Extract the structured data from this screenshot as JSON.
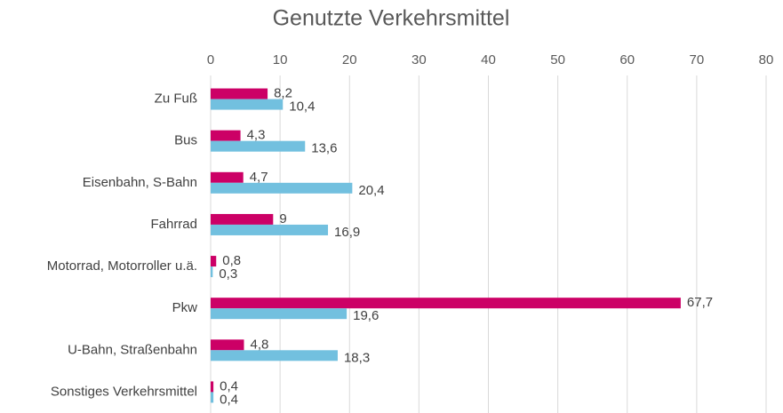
{
  "chart_data": {
    "type": "hbar",
    "title": "Genutzte Verkehrsmittel",
    "categories": [
      "Zu Fuß",
      "Bus",
      "Eisenbahn, S-Bahn",
      "Fahrrad",
      "Motorrad, Motorroller u.ä.",
      "Pkw",
      "U-Bahn, Straßenbahn",
      "Sonstiges Verkehrsmittel"
    ],
    "series": [
      {
        "color": "#cc0066",
        "values": [
          8.2,
          4.3,
          4.7,
          9,
          0.8,
          67.7,
          4.8,
          0.4
        ],
        "value_labels": [
          "8,2",
          "4,3",
          "4,7",
          "9",
          "0,8",
          "67,7",
          "4,8",
          "0,4"
        ]
      },
      {
        "color": "#72c0df",
        "values": [
          10.4,
          13.6,
          20.4,
          16.9,
          0.3,
          19.6,
          18.3,
          0.4
        ],
        "value_labels": [
          "10,4",
          "13,6",
          "20,4",
          "16,9",
          "0,3",
          "19,6",
          "18,3",
          "0,4"
        ]
      }
    ],
    "xlim": [
      0,
      80
    ],
    "xticks": [
      0,
      10,
      20,
      30,
      40,
      50,
      60,
      70,
      80
    ],
    "grid": true
  }
}
